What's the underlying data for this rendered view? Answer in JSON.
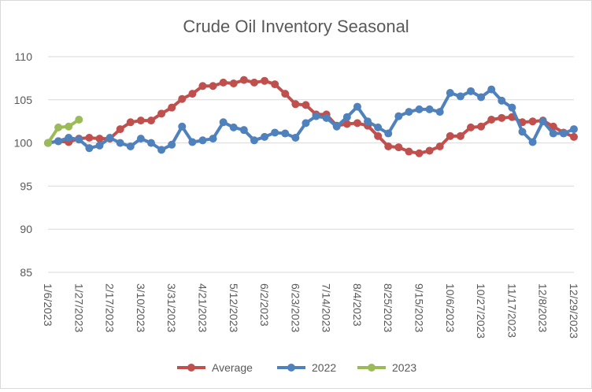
{
  "chart_data": {
    "type": "line",
    "title": "Crude Oil Inventory Seasonal",
    "ylim": [
      85,
      110
    ],
    "yticks": [
      85,
      90,
      95,
      100,
      105,
      110
    ],
    "grid": true,
    "legend_position": "bottom",
    "x_tick_labels": [
      "1/6/2023",
      "1/27/2023",
      "2/17/2023",
      "3/10/2023",
      "3/31/2023",
      "4/21/2023",
      "5/12/2023",
      "6/2/2023",
      "6/23/2023",
      "7/14/2023",
      "8/4/2023",
      "8/25/2023",
      "9/15/2023",
      "10/6/2023",
      "10/27/2023",
      "11/17/2023",
      "12/8/2023",
      "12/29/2023"
    ],
    "series": [
      {
        "name": "Average",
        "color": "#c0504d",
        "values": [
          100.0,
          100.2,
          100.1,
          100.5,
          100.6,
          100.5,
          100.5,
          101.6,
          102.4,
          102.6,
          102.6,
          103.4,
          104.1,
          105.1,
          105.7,
          106.6,
          106.6,
          107.0,
          106.9,
          107.3,
          107.0,
          107.2,
          106.8,
          105.7,
          104.5,
          104.4,
          103.3,
          103.3,
          102.0,
          102.2,
          102.3,
          102.0,
          100.8,
          99.6,
          99.5,
          99.0,
          98.8,
          99.1,
          99.6,
          100.8,
          100.8,
          101.8,
          101.9,
          102.7,
          102.9,
          103.0,
          102.4,
          102.5,
          102.6,
          101.9,
          101.2,
          100.7
        ]
      },
      {
        "name": "2022",
        "color": "#4f81bd",
        "values": [
          100.0,
          100.2,
          100.6,
          100.4,
          99.4,
          99.7,
          100.6,
          100.0,
          99.6,
          100.5,
          100.0,
          99.2,
          99.8,
          101.9,
          100.1,
          100.3,
          100.5,
          102.4,
          101.8,
          101.5,
          100.3,
          100.7,
          101.2,
          101.1,
          100.6,
          102.3,
          103.1,
          102.9,
          101.9,
          103.0,
          104.2,
          102.5,
          101.8,
          101.1,
          103.1,
          103.6,
          103.9,
          103.9,
          103.6,
          105.8,
          105.4,
          106.0,
          105.3,
          106.2,
          104.9,
          104.1,
          101.3,
          100.1,
          102.5,
          101.1,
          101.1,
          101.6
        ]
      },
      {
        "name": "2023",
        "color": "#9bbb59",
        "values": [
          100.0,
          101.8,
          101.9,
          102.7
        ]
      }
    ]
  }
}
